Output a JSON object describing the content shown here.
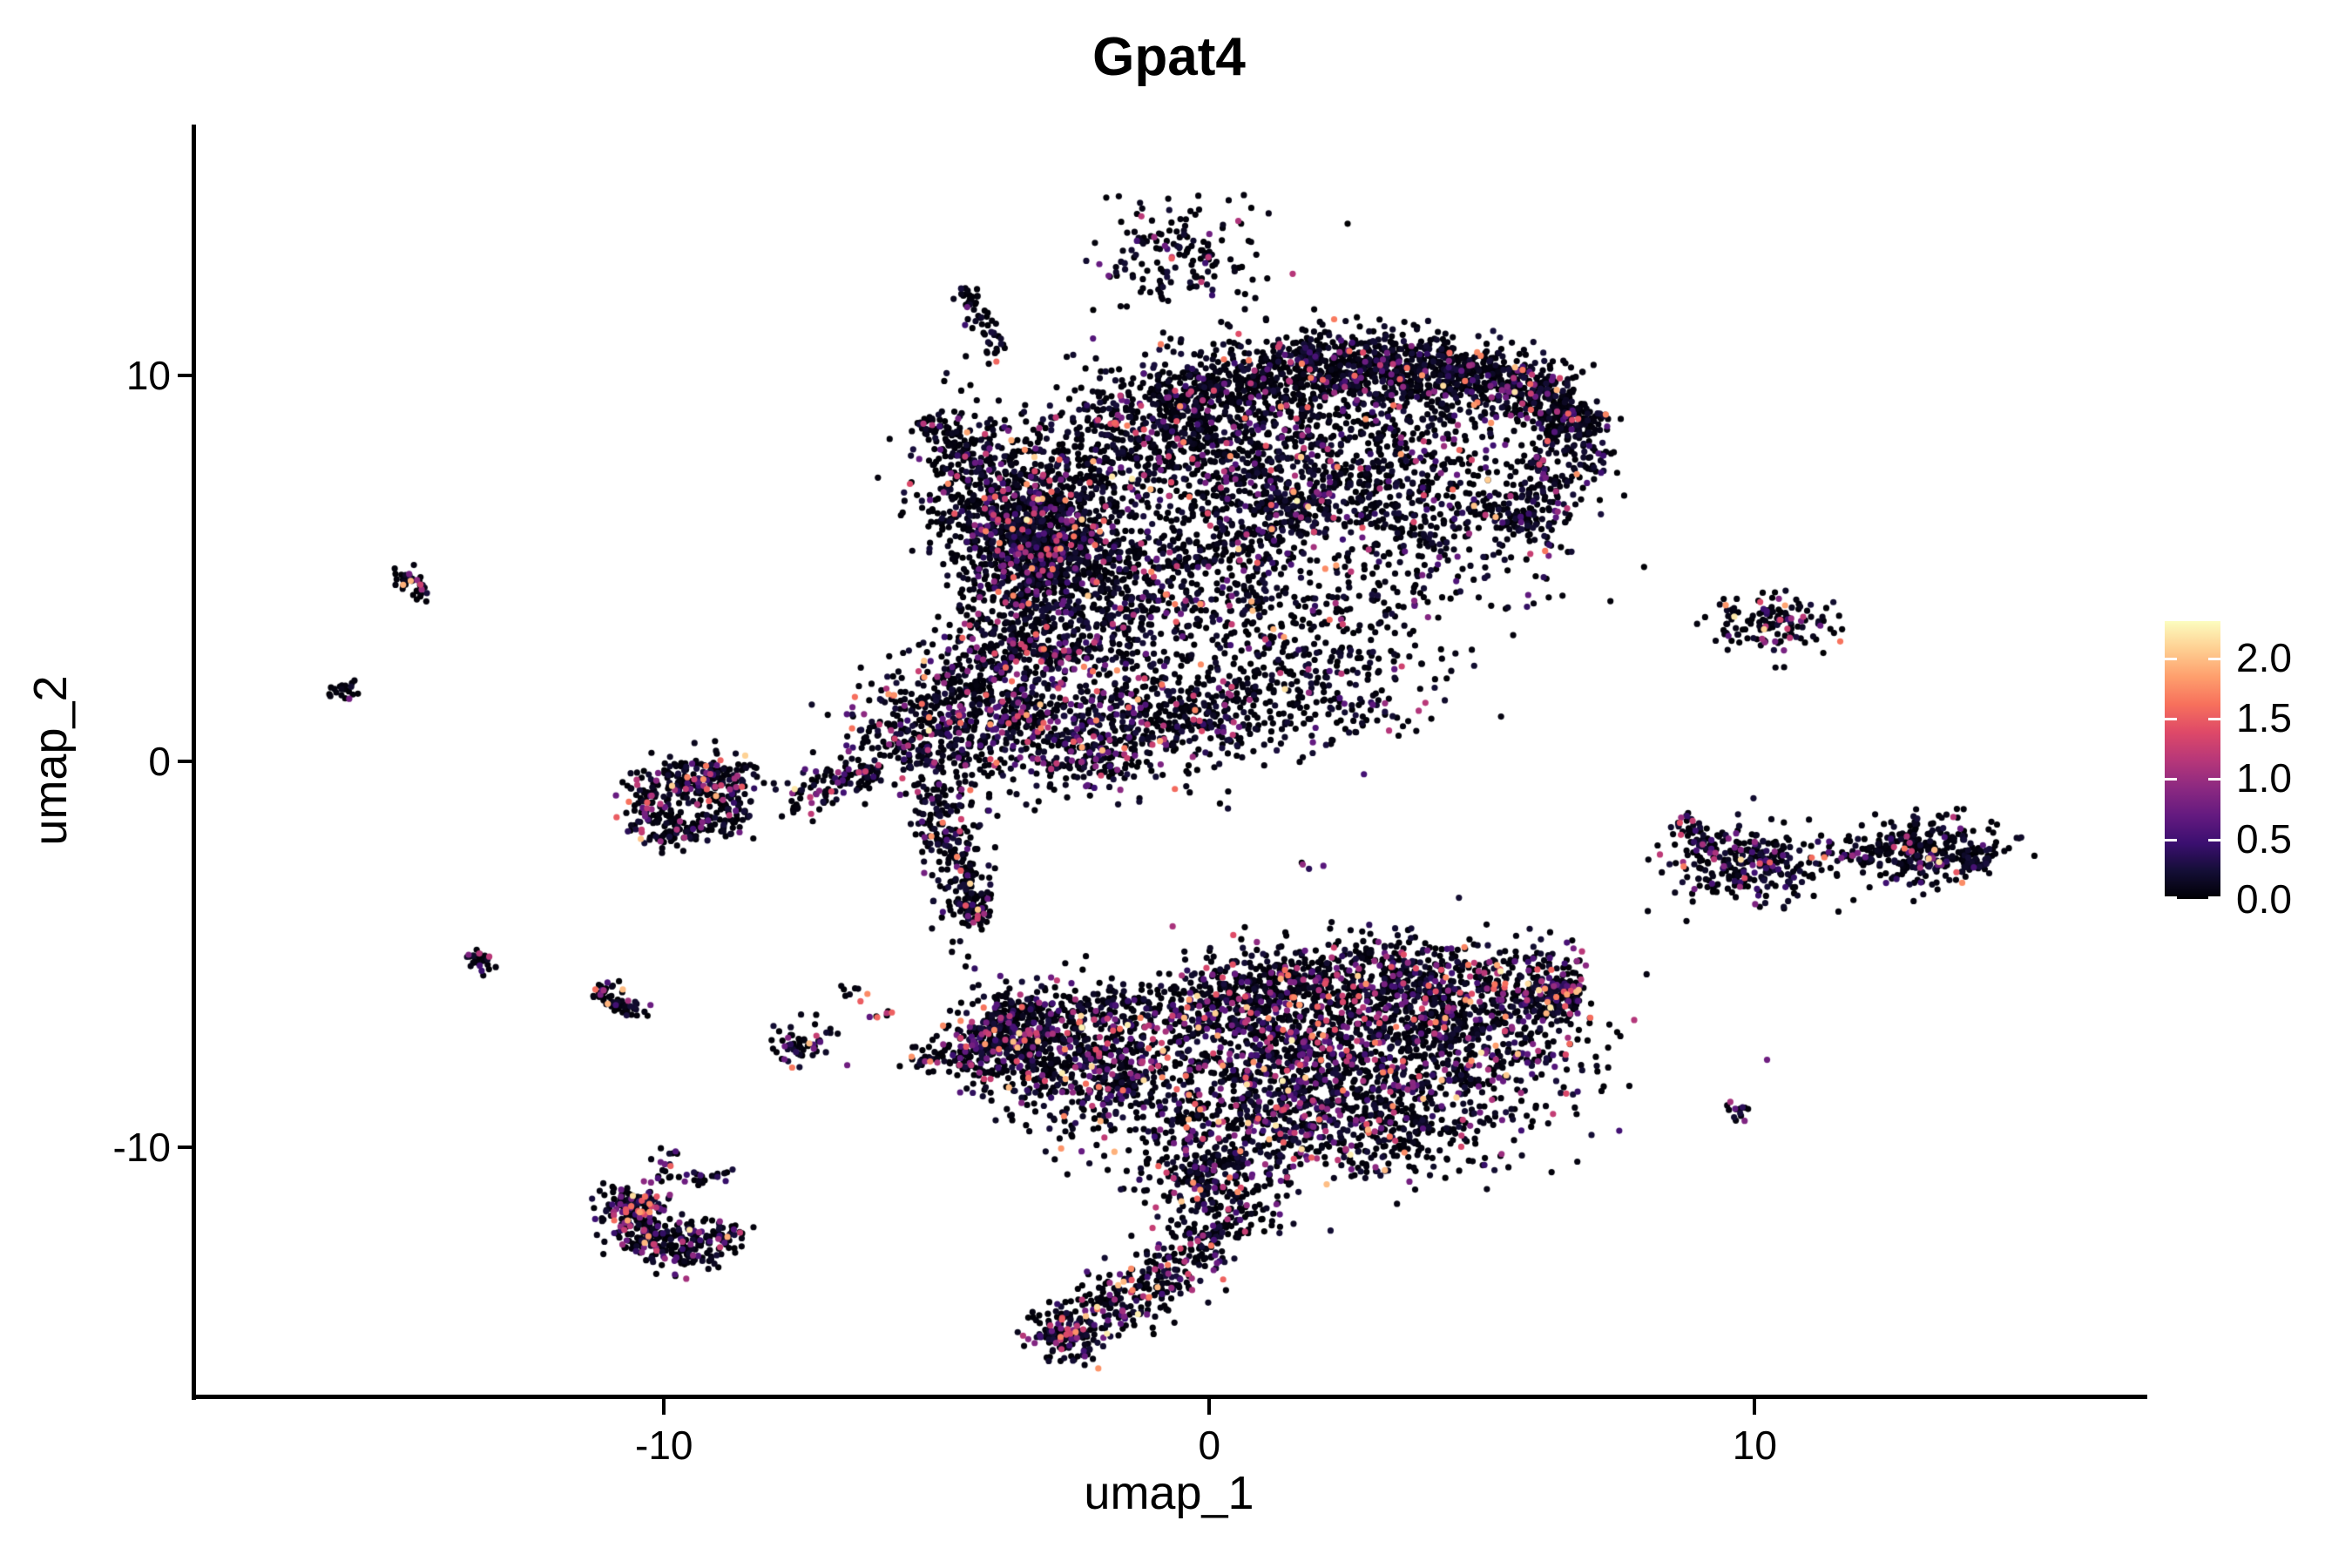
{
  "chart_data": {
    "type": "scatter",
    "title": "Gpat4",
    "xlabel": "umap_1",
    "ylabel": "umap_2",
    "xlim": [
      -18.63,
      17.15
    ],
    "ylim": [
      -16.46,
      16.5
    ],
    "x_ticks": [
      {
        "value": -10,
        "label": "-10"
      },
      {
        "value": 0,
        "label": "0"
      },
      {
        "value": 10,
        "label": "10"
      }
    ],
    "y_ticks": [
      {
        "value": 10,
        "label": "10"
      },
      {
        "value": 0,
        "label": "0"
      },
      {
        "value": -10,
        "label": "-10"
      }
    ],
    "grid": false,
    "point_radius_px": 3.6,
    "seed": 42,
    "legend": {
      "position": "right",
      "vmin": 0.0,
      "vmax": 2.3,
      "tick_values": [
        2.0,
        1.5,
        1.0,
        0.5,
        0.0
      ],
      "tick_labels": [
        "2.0",
        "1.5",
        "1.0",
        "0.5",
        "0.0"
      ],
      "colormap_name": "magma",
      "colormap_stops": [
        "#000004",
        "#140e36",
        "#3b0f70",
        "#641a80",
        "#8c2981",
        "#b73779",
        "#de4968",
        "#f7705c",
        "#fe9f6d",
        "#fecf92",
        "#fcfdbf"
      ]
    },
    "expression_note": "UMAP feature plot; most cells near 0 (black), scattered cells up to ~2.3 (magma scale)",
    "components": [
      {
        "k": "g",
        "c": [
          -0.55,
          13.1
        ],
        "s": [
          0.72,
          0.78
        ],
        "n": 160,
        "h": 0.12
      },
      {
        "k": "s",
        "a": [
          -4.55,
          12.25
        ],
        "b": [
          -3.85,
          10.45
        ],
        "w": 0.12,
        "n": 55,
        "h": 0.1
      },
      {
        "k": "s",
        "a": [
          -5.35,
          8.85
        ],
        "b": [
          -4.5,
          8.1
        ],
        "w": 0.18,
        "n": 55,
        "h": 0.12
      },
      {
        "k": "g",
        "c": [
          -4.35,
          7.3
        ],
        "s": [
          0.55,
          1.05
        ],
        "n": 300,
        "h": 0.1
      },
      {
        "k": "g",
        "c": [
          -3.15,
          5.65
        ],
        "s": [
          0.72,
          0.78
        ],
        "n": 780,
        "h": 0.16
      },
      {
        "k": "s",
        "a": [
          -3.6,
          6.6
        ],
        "b": [
          -0.9,
          9.1
        ],
        "w": 0.75,
        "n": 520,
        "h": 0.12
      },
      {
        "k": "s",
        "a": [
          -1.0,
          9.35
        ],
        "b": [
          1.6,
          10.15
        ],
        "w": 0.5,
        "n": 430,
        "h": 0.1
      },
      {
        "k": "s",
        "a": [
          1.6,
          10.2
        ],
        "b": [
          4.6,
          10.1
        ],
        "w": 0.52,
        "n": 600,
        "h": 0.1
      },
      {
        "k": "s",
        "a": [
          4.6,
          10.05
        ],
        "b": [
          6.55,
          9.25
        ],
        "w": 0.46,
        "n": 400,
        "h": 0.1
      },
      {
        "k": "s",
        "a": [
          6.55,
          9.2
        ],
        "b": [
          6.85,
          8.45
        ],
        "w": 0.3,
        "n": 130,
        "h": 0.1
      },
      {
        "k": "s",
        "a": [
          6.8,
          8.4
        ],
        "b": [
          5.6,
          5.9
        ],
        "w": 0.42,
        "n": 200,
        "h": 0.1
      },
      {
        "k": "g",
        "c": [
          2.3,
          10.7
        ],
        "s": [
          1.5,
          0.33
        ],
        "n": 70,
        "h": 0.08
      },
      {
        "k": "g",
        "c": [
          0.3,
          7.0
        ],
        "s": [
          1.0,
          1.15
        ],
        "n": 330,
        "h": 0.12
      },
      {
        "k": "g",
        "c": [
          3.6,
          6.7
        ],
        "s": [
          1.45,
          1.25
        ],
        "n": 640,
        "h": 0.12
      },
      {
        "k": "g",
        "c": [
          1.7,
          8.6
        ],
        "s": [
          1.9,
          0.8
        ],
        "n": 380,
        "h": 0.1
      },
      {
        "k": "s",
        "a": [
          -0.6,
          8.9
        ],
        "b": [
          1.9,
          6.2
        ],
        "w": 0.3,
        "n": 110,
        "h": 0.1
      },
      {
        "k": "s",
        "a": [
          0.3,
          5.3
        ],
        "b": [
          2.9,
          7.6
        ],
        "w": 0.3,
        "n": 100,
        "h": 0.1
      },
      {
        "k": "g",
        "c": [
          -2.1,
          3.7
        ],
        "s": [
          0.95,
          1.05
        ],
        "n": 420,
        "h": 0.14
      },
      {
        "k": "g",
        "c": [
          1.6,
          2.7
        ],
        "s": [
          1.25,
          1.05
        ],
        "n": 300,
        "h": 0.12
      },
      {
        "k": "g",
        "c": [
          -0.3,
          4.9
        ],
        "s": [
          1.3,
          1.1
        ],
        "n": 380,
        "h": 0.12
      },
      {
        "k": "s",
        "a": [
          -3.3,
          4.8
        ],
        "b": [
          -3.9,
          2.6
        ],
        "w": 0.5,
        "n": 200,
        "h": 0.12
      },
      {
        "k": "g",
        "c": [
          0.9,
          1.35
        ],
        "s": [
          1.6,
          0.7
        ],
        "n": 210,
        "h": 0.12
      },
      {
        "k": "g",
        "c": [
          -3.8,
          1.7
        ],
        "s": [
          1.0,
          0.95
        ],
        "n": 500,
        "h": 0.22
      },
      {
        "k": "g",
        "c": [
          -5.25,
          0.7
        ],
        "s": [
          0.75,
          0.7
        ],
        "n": 280,
        "h": 0.18
      },
      {
        "k": "g",
        "c": [
          -2.1,
          0.5
        ],
        "s": [
          1.05,
          0.75
        ],
        "n": 330,
        "h": 0.18
      },
      {
        "k": "s",
        "a": [
          -1.8,
          1.3
        ],
        "b": [
          0.7,
          1.0
        ],
        "w": 0.45,
        "n": 140,
        "h": 0.12
      },
      {
        "k": "s",
        "a": [
          -6.1,
          -0.2
        ],
        "b": [
          -7.7,
          -1.05
        ],
        "w": 0.22,
        "n": 110,
        "h": 0.22
      },
      {
        "k": "r",
        "c": [
          -9.55,
          -1.1
        ],
        "r": 0.82,
        "w": 0.26,
        "ang": [
          0,
          360
        ],
        "n": 330,
        "h": 0.14
      },
      {
        "k": "g",
        "c": [
          -9.0,
          -0.6
        ],
        "s": [
          0.5,
          0.35
        ],
        "n": 90,
        "h": 0.14
      },
      {
        "k": "s",
        "a": [
          -5.05,
          -0.6
        ],
        "b": [
          -4.35,
          -4.15
        ],
        "w": 0.3,
        "n": 230,
        "h": 0.12
      },
      {
        "k": "s",
        "a": [
          -4.55,
          -3.6
        ],
        "b": [
          -4.1,
          -4.25
        ],
        "w": 0.12,
        "n": 40,
        "h": 0.35
      },
      {
        "k": "s",
        "a": [
          -4.5,
          -4.6
        ],
        "b": [
          -4.45,
          -6.4
        ],
        "w": 0.25,
        "n": 12,
        "h": 0.1
      },
      {
        "k": "s",
        "a": [
          -14.9,
          4.95
        ],
        "b": [
          -14.4,
          4.25
        ],
        "w": 0.12,
        "n": 40,
        "h": 0.18
      },
      {
        "k": "g",
        "c": [
          -15.85,
          1.85
        ],
        "s": [
          0.2,
          0.17
        ],
        "n": 20,
        "h": 0.12
      },
      {
        "k": "s",
        "a": [
          -13.55,
          -4.95
        ],
        "b": [
          -13.2,
          -5.45
        ],
        "w": 0.12,
        "n": 26,
        "h": 0.1
      },
      {
        "k": "s",
        "a": [
          -11.2,
          -5.9
        ],
        "b": [
          -10.4,
          -6.6
        ],
        "w": 0.14,
        "n": 60,
        "h": 0.12
      },
      {
        "k": "g",
        "c": [
          -7.55,
          -7.3
        ],
        "s": [
          0.33,
          0.3
        ],
        "n": 55,
        "h": 0.15
      },
      {
        "k": "g",
        "c": [
          -6.55,
          -5.95
        ],
        "s": [
          0.15,
          0.12
        ],
        "n": 8,
        "h": 0.1
      },
      {
        "k": "g",
        "c": [
          -6.0,
          -6.6
        ],
        "s": [
          0.13,
          0.1
        ],
        "n": 7,
        "h": 0.5
      },
      {
        "k": "g",
        "c": [
          -4.95,
          -7.7
        ],
        "s": [
          0.3,
          0.18
        ],
        "n": 45,
        "h": 0.12
      },
      {
        "k": "g",
        "c": [
          1.8,
          -2.75
        ],
        "s": [
          0.1,
          0.08
        ],
        "n": 4,
        "h": 0.6
      },
      {
        "k": "r",
        "c": [
          -9.75,
          -11.7
        ],
        "r": 0.95,
        "w": 0.3,
        "ang": [
          150,
          345
        ],
        "n": 330,
        "h": 0.25
      },
      {
        "k": "g",
        "c": [
          -10.4,
          -11.5
        ],
        "s": [
          0.28,
          0.22
        ],
        "n": 70,
        "h": 0.2
      },
      {
        "k": "g",
        "c": [
          -10.0,
          -10.45
        ],
        "s": [
          0.15,
          0.22
        ],
        "n": 16,
        "h": 0.3
      },
      {
        "k": "g",
        "c": [
          -9.3,
          -10.75
        ],
        "s": [
          0.3,
          0.12
        ],
        "n": 22,
        "h": 0.15
      },
      {
        "k": "g",
        "c": [
          -3.9,
          -7.15
        ],
        "s": [
          0.5,
          0.4
        ],
        "n": 160,
        "h": 0.18
      },
      {
        "k": "s",
        "a": [
          -4.3,
          -7.0
        ],
        "b": [
          -1.1,
          -8.35
        ],
        "w": 0.75,
        "n": 650,
        "h": 0.2
      },
      {
        "k": "s",
        "a": [
          -4.1,
          -6.75
        ],
        "b": [
          -0.5,
          -6.25
        ],
        "w": 0.35,
        "n": 210,
        "h": 0.15
      },
      {
        "k": "s",
        "a": [
          -0.4,
          -6.15
        ],
        "b": [
          2.6,
          -5.45
        ],
        "w": 0.5,
        "n": 360,
        "h": 0.18
      },
      {
        "k": "s",
        "a": [
          2.6,
          -5.45
        ],
        "b": [
          6.75,
          -5.95
        ],
        "w": 0.55,
        "n": 520,
        "h": 0.2
      },
      {
        "k": "g",
        "c": [
          1.5,
          -7.3
        ],
        "s": [
          1.7,
          1.0
        ],
        "n": 850,
        "h": 0.25
      },
      {
        "k": "g",
        "c": [
          4.2,
          -7.2
        ],
        "s": [
          1.4,
          0.9
        ],
        "n": 620,
        "h": 0.22
      },
      {
        "k": "s",
        "a": [
          5.9,
          -6.3
        ],
        "b": [
          6.8,
          -6.05
        ],
        "w": 0.3,
        "n": 90,
        "h": 0.18
      },
      {
        "k": "g",
        "c": [
          0.6,
          -9.35
        ],
        "s": [
          1.5,
          0.85
        ],
        "n": 520,
        "h": 0.22
      },
      {
        "k": "g",
        "c": [
          3.2,
          -9.3
        ],
        "s": [
          1.2,
          0.75
        ],
        "n": 380,
        "h": 0.2
      },
      {
        "k": "s",
        "a": [
          -0.15,
          -10.2
        ],
        "b": [
          0.35,
          -12.35
        ],
        "w": 0.5,
        "n": 270,
        "h": 0.15
      },
      {
        "k": "s",
        "a": [
          0.1,
          -12.4
        ],
        "b": [
          -2.7,
          -15.1
        ],
        "w": 0.42,
        "n": 310,
        "h": 0.22
      },
      {
        "k": "g",
        "c": [
          -2.72,
          -14.85
        ],
        "s": [
          0.3,
          0.33
        ],
        "n": 90,
        "h": 0.3
      },
      {
        "k": "g",
        "c": [
          -1.3,
          -13.7
        ],
        "s": [
          0.5,
          0.35
        ],
        "n": 22,
        "h": 0.1
      },
      {
        "k": "g",
        "c": [
          10.35,
          3.55
        ],
        "s": [
          0.55,
          0.38
        ],
        "n": 135,
        "h": 0.15
      },
      {
        "k": "g",
        "c": [
          9.55,
          3.95
        ],
        "s": [
          0.12,
          0.1
        ],
        "n": 4,
        "h": 0.0
      },
      {
        "k": "s",
        "a": [
          8.6,
          -1.5
        ],
        "b": [
          9.3,
          -2.2
        ],
        "w": 0.18,
        "n": 45,
        "h": 0.2
      },
      {
        "k": "g",
        "c": [
          9.95,
          -2.7
        ],
        "s": [
          0.7,
          0.48
        ],
        "n": 270,
        "h": 0.15
      },
      {
        "k": "s",
        "a": [
          11.2,
          -2.4
        ],
        "b": [
          12.15,
          -2.5
        ],
        "w": 0.07,
        "n": 13,
        "h": 0.5
      },
      {
        "k": "g",
        "c": [
          13.0,
          -2.35
        ],
        "s": [
          0.7,
          0.42
        ],
        "n": 290,
        "h": 0.12
      },
      {
        "k": "s",
        "a": [
          13.75,
          -2.45
        ],
        "b": [
          14.25,
          -2.7
        ],
        "w": 0.18,
        "n": 45,
        "h": 0.12
      },
      {
        "k": "s",
        "a": [
          9.6,
          -8.9
        ],
        "b": [
          9.85,
          -9.25
        ],
        "w": 0.1,
        "n": 14,
        "h": 0.5
      }
    ]
  }
}
